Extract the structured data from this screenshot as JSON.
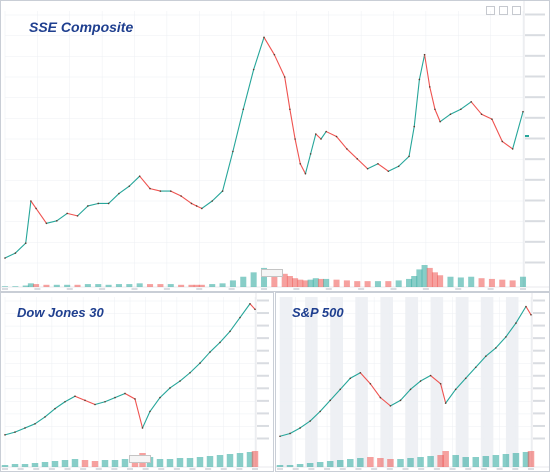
{
  "colors": {
    "up": "#26a69a",
    "down": "#ef5350",
    "title": "#1f3f8f",
    "band": "#eef0f4",
    "grid": "#eceff3"
  },
  "chart_data": [
    {
      "type": "line",
      "title": "SSE Composite",
      "ticker": "",
      "last_price": "",
      "x": [
        0,
        2,
        4,
        5,
        6,
        8,
        10,
        12,
        14,
        16,
        18,
        20,
        22,
        24,
        26,
        28,
        30,
        32,
        34,
        36,
        37,
        38,
        40,
        42,
        44,
        46,
        48,
        50,
        52,
        54,
        55,
        56,
        57,
        58,
        59,
        60,
        61,
        62,
        64,
        66,
        68,
        70,
        72,
        74,
        76,
        78,
        79,
        80,
        81,
        82,
        83,
        84,
        86,
        88,
        90,
        92,
        94,
        96,
        98,
        100
      ],
      "y": [
        2,
        4,
        8,
        25,
        22,
        16,
        17,
        20,
        19,
        23,
        24,
        24,
        28,
        31,
        35,
        30,
        29,
        29,
        27,
        24,
        23,
        22,
        25,
        29,
        45,
        62,
        78,
        91,
        84,
        75,
        62,
        50,
        40,
        36,
        44,
        52,
        50,
        53,
        51,
        46,
        42,
        38,
        40,
        37,
        39,
        43,
        55,
        74,
        84,
        71,
        62,
        57,
        60,
        62,
        65,
        60,
        58,
        49,
        46,
        61
      ],
      "volume": [
        1,
        1,
        2,
        5,
        4,
        3,
        3,
        3,
        3,
        4,
        4,
        3,
        4,
        4,
        5,
        4,
        4,
        4,
        3,
        3,
        3,
        3,
        4,
        5,
        9,
        14,
        20,
        26,
        22,
        18,
        15,
        12,
        10,
        9,
        10,
        12,
        11,
        11,
        10,
        9,
        8,
        8,
        8,
        8,
        9,
        11,
        15,
        24,
        30,
        26,
        20,
        16,
        14,
        13,
        14,
        12,
        11,
        10,
        9,
        14
      ]
    },
    {
      "type": "line",
      "title": "Dow Jones 30",
      "x": [
        0,
        4,
        8,
        12,
        16,
        20,
        24,
        28,
        32,
        36,
        40,
        44,
        48,
        52,
        55,
        58,
        62,
        66,
        70,
        74,
        78,
        82,
        86,
        90,
        94,
        98,
        100
      ],
      "y": [
        3,
        5,
        8,
        11,
        16,
        22,
        27,
        31,
        28,
        25,
        27,
        30,
        33,
        29,
        8,
        20,
        30,
        37,
        42,
        48,
        55,
        63,
        70,
        78,
        88,
        98,
        94
      ],
      "volume": [
        2,
        3,
        3,
        4,
        5,
        6,
        7,
        8,
        7,
        6,
        7,
        7,
        8,
        9,
        14,
        10,
        8,
        8,
        9,
        9,
        10,
        11,
        12,
        13,
        14,
        15,
        16
      ]
    },
    {
      "type": "line",
      "title": "S&P 500",
      "x": [
        0,
        4,
        8,
        12,
        16,
        20,
        24,
        28,
        32,
        36,
        40,
        44,
        48,
        52,
        56,
        60,
        64,
        66,
        70,
        74,
        78,
        82,
        86,
        90,
        94,
        98,
        100
      ],
      "y": [
        2,
        4,
        8,
        13,
        20,
        28,
        36,
        44,
        48,
        40,
        30,
        24,
        28,
        36,
        42,
        46,
        40,
        26,
        36,
        44,
        52,
        60,
        66,
        74,
        84,
        96,
        90
      ],
      "volume": [
        2,
        2,
        3,
        4,
        5,
        6,
        7,
        8,
        9,
        10,
        9,
        8,
        8,
        9,
        10,
        11,
        12,
        16,
        12,
        10,
        10,
        11,
        12,
        13,
        14,
        15,
        16
      ]
    }
  ]
}
